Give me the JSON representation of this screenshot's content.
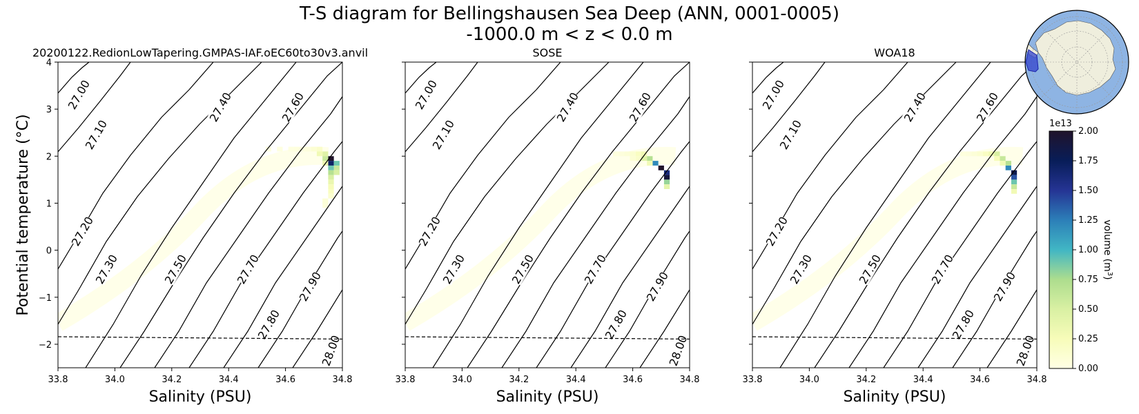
{
  "figure": {
    "title_line1": "T-S diagram for Bellingshausen Sea Deep (ANN, 0001-0005)",
    "title_line2": "-1000.0 m < z < 0.0 m"
  },
  "colorbar": {
    "label": "volume (m³)",
    "exponent": "1e13",
    "ticks": [
      "0.00",
      "0.25",
      "0.50",
      "0.75",
      "1.00",
      "1.25",
      "1.50",
      "1.75",
      "2.00"
    ],
    "cmap": [
      "#ffffe5",
      "#f7fcb9",
      "#d9f0a3",
      "#addd8e",
      "#41b6c4",
      "#2c7fb8",
      "#253494",
      "#081d58",
      "#20132b"
    ]
  },
  "inset_map": {
    "ocean_color": "#8eb4e3",
    "land_color": "#efeedd",
    "region_color": "#3344cc"
  },
  "chart_data": [
    {
      "type": "heatmap",
      "title": "20200122.RedionLowTapering.GMPAS-IAF.oEC60to30v3.anvil",
      "xlabel": "Salinity (PSU)",
      "ylabel": "Potential temperature (°C)",
      "xlim": [
        33.8,
        34.8
      ],
      "ylim": [
        -2.5,
        4
      ],
      "xticks": [
        "33.8",
        "34.0",
        "34.2",
        "34.4",
        "34.6",
        "34.8"
      ],
      "yticks": [
        "−2",
        "−1",
        "0",
        "1",
        "2",
        "3",
        "4"
      ],
      "density_contours": [
        "27.00",
        "27.10",
        "27.20",
        "27.30",
        "27.40",
        "27.50",
        "27.60",
        "27.70",
        "27.80",
        "27.90",
        "28.00"
      ],
      "freezing_line": [
        [
          33.8,
          -1.84
        ],
        [
          34.8,
          -1.89
        ]
      ],
      "cells": [
        [
          34.76,
          1.95,
          2.0
        ],
        [
          34.76,
          1.85,
          1.7
        ],
        [
          34.78,
          1.85,
          0.9
        ],
        [
          34.78,
          1.75,
          0.6
        ],
        [
          34.76,
          1.75,
          0.9
        ],
        [
          34.76,
          1.65,
          0.7
        ],
        [
          34.78,
          1.65,
          0.5
        ],
        [
          34.76,
          1.55,
          0.5
        ],
        [
          34.76,
          1.45,
          0.35
        ],
        [
          34.76,
          1.35,
          0.25
        ],
        [
          34.76,
          1.25,
          0.2
        ],
        [
          34.76,
          1.15,
          0.12
        ],
        [
          34.74,
          2.05,
          0.45
        ],
        [
          34.74,
          1.95,
          0.6
        ],
        [
          34.74,
          1.85,
          0.35
        ],
        [
          34.72,
          2.05,
          0.3
        ],
        [
          34.72,
          2.15,
          0.15
        ],
        [
          34.7,
          2.15,
          0.1
        ],
        [
          34.74,
          1.05,
          0.08
        ],
        [
          34.74,
          0.95,
          0.06
        ],
        [
          34.68,
          2.15,
          0.05
        ],
        [
          34.66,
          2.15,
          0.04
        ],
        [
          34.62,
          2.15,
          0.03
        ],
        [
          34.58,
          2.15,
          0.03
        ],
        [
          34.54,
          2.15,
          0.025
        ],
        [
          34.64,
          2.15,
          0.04
        ]
      ]
    },
    {
      "type": "heatmap",
      "title": "SOSE",
      "xlabel": "Salinity (PSU)",
      "xlim": [
        33.8,
        34.8
      ],
      "ylim": [
        -2.5,
        4
      ],
      "xticks": [
        "33.8",
        "34.0",
        "34.2",
        "34.4",
        "34.6",
        "34.8"
      ],
      "density_contours": [
        "27.00",
        "27.10",
        "27.20",
        "27.30",
        "27.40",
        "27.50",
        "27.60",
        "27.70",
        "27.80",
        "27.90",
        "28.00"
      ],
      "freezing_line": [
        [
          33.8,
          -1.84
        ],
        [
          34.8,
          -1.89
        ]
      ],
      "cells": [
        [
          34.72,
          1.55,
          1.9
        ],
        [
          34.72,
          1.65,
          1.6
        ],
        [
          34.72,
          1.45,
          0.8
        ],
        [
          34.72,
          1.35,
          0.4
        ],
        [
          34.7,
          1.75,
          2.0
        ],
        [
          34.68,
          1.85,
          1.2
        ],
        [
          34.66,
          1.95,
          0.7
        ],
        [
          34.64,
          1.95,
          0.45
        ],
        [
          34.64,
          2.05,
          0.3
        ],
        [
          34.62,
          2.05,
          0.2
        ],
        [
          34.6,
          2.05,
          0.12
        ],
        [
          34.58,
          2.05,
          0.08
        ],
        [
          34.56,
          2.05,
          0.05
        ],
        [
          34.54,
          2.05,
          0.04
        ],
        [
          34.66,
          1.85,
          0.3
        ],
        [
          34.6,
          1.95,
          0.1
        ],
        [
          34.62,
          1.95,
          0.15
        ]
      ]
    },
    {
      "type": "heatmap",
      "title": "WOA18",
      "xlabel": "Salinity (PSU)",
      "xlim": [
        33.8,
        34.8
      ],
      "ylim": [
        -2.5,
        4
      ],
      "xticks": [
        "33.8",
        "34.0",
        "34.2",
        "34.4",
        "34.6",
        "34.8"
      ],
      "density_contours": [
        "27.00",
        "27.10",
        "27.20",
        "27.30",
        "27.40",
        "27.50",
        "27.60",
        "27.70",
        "27.80",
        "27.90",
        "28.00"
      ],
      "freezing_line": [
        [
          33.8,
          -1.84
        ],
        [
          34.8,
          -1.89
        ]
      ],
      "cells": [
        [
          34.72,
          1.65,
          1.8
        ],
        [
          34.72,
          1.55,
          1.4
        ],
        [
          34.72,
          1.45,
          0.9
        ],
        [
          34.72,
          1.35,
          0.6
        ],
        [
          34.72,
          1.25,
          0.3
        ],
        [
          34.7,
          1.75,
          1.2
        ],
        [
          34.7,
          1.85,
          0.7
        ],
        [
          34.68,
          1.95,
          0.6
        ],
        [
          34.66,
          2.05,
          0.5
        ],
        [
          34.64,
          2.05,
          0.3
        ],
        [
          34.62,
          2.05,
          0.2
        ],
        [
          34.6,
          2.05,
          0.12
        ],
        [
          34.58,
          2.05,
          0.08
        ],
        [
          34.56,
          2.05,
          0.05
        ],
        [
          34.54,
          2.05,
          0.04
        ],
        [
          34.68,
          1.85,
          0.3
        ],
        [
          34.66,
          1.95,
          0.25
        ]
      ]
    }
  ]
}
